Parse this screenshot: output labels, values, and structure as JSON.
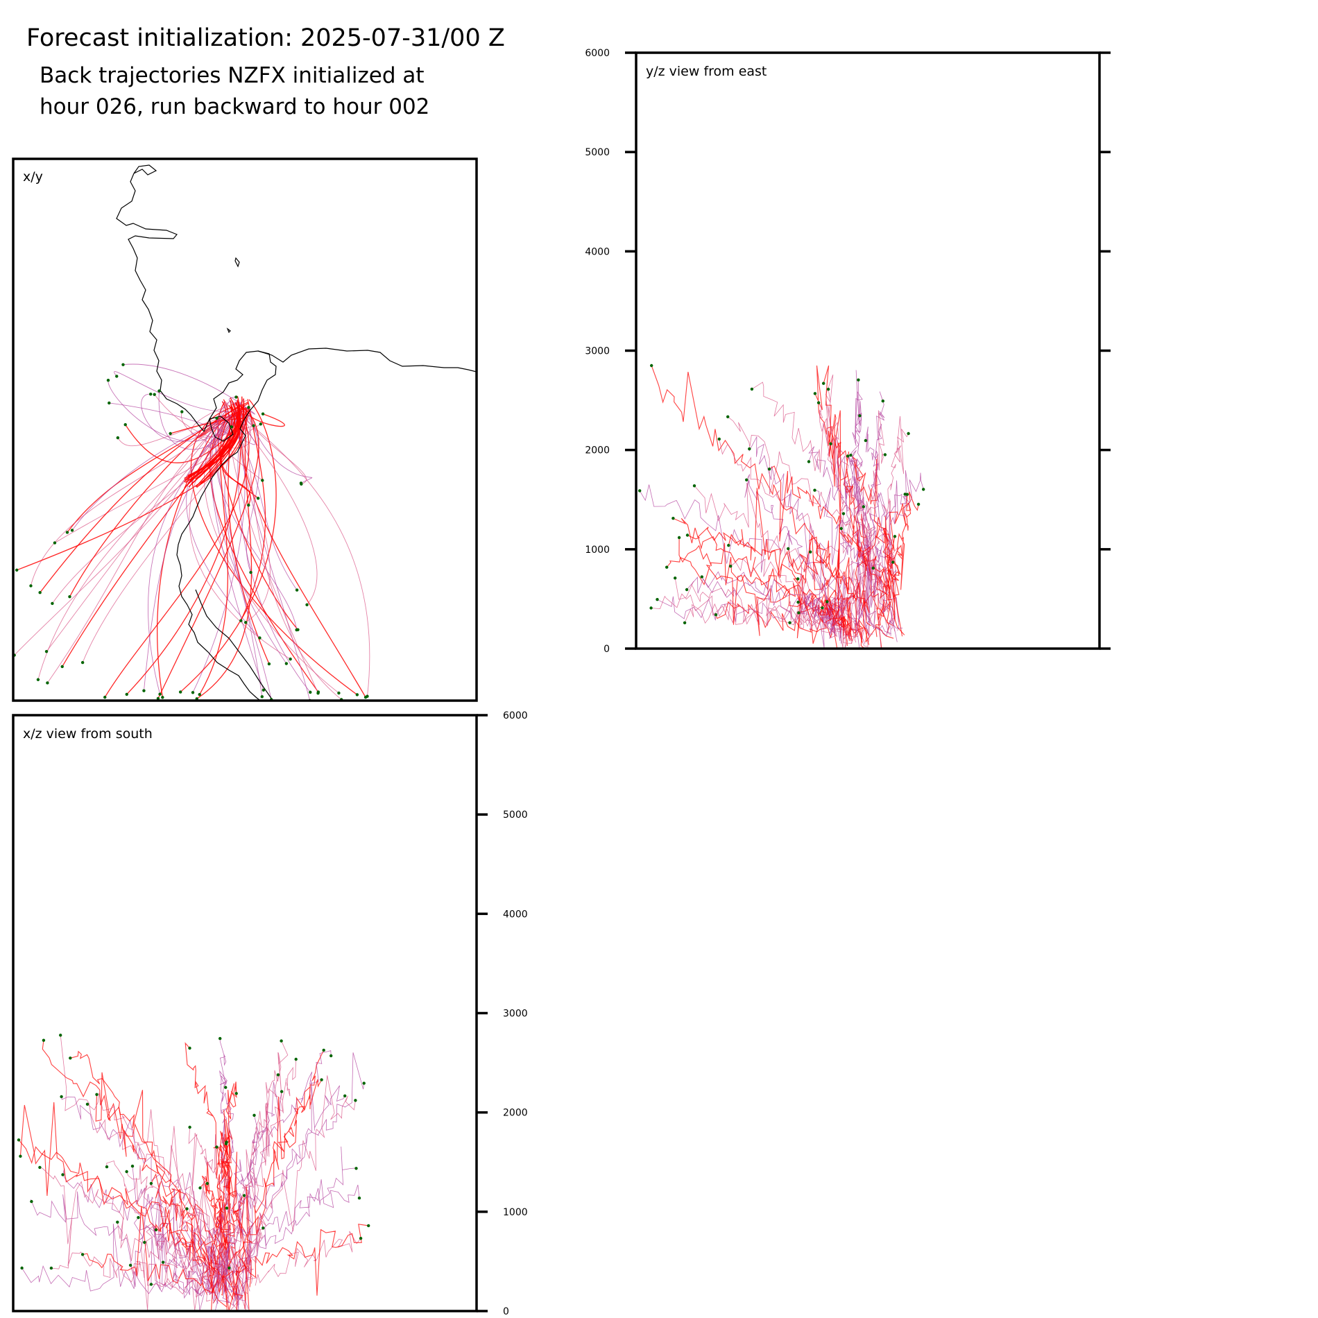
{
  "header": {
    "title": "Forecast initialization: 2025-07-31/00 Z",
    "subtitle_line1": "Back trajectories NZFX initialized at",
    "subtitle_line2": "hour 026, run backward to hour 002"
  },
  "colors": {
    "trajectory_primary": "#ff0000",
    "trajectory_secondary": "#b03a9a",
    "trajectory_tertiary": "#d84b80",
    "endpoint_marker": "#006400",
    "coastline": "#000000",
    "axes": "#000000"
  },
  "chart_data": [
    {
      "type": "line",
      "panel": "x/y",
      "label": "x/y",
      "description_of_content": "Map view of back-trajectory paths over a coastline; horizontal coordinates are not labelled.",
      "xlabel": "",
      "ylabel": "",
      "grid": false
    },
    {
      "type": "line",
      "panel": "y/z",
      "label": "y/z view from east",
      "xlabel": "",
      "ylabel": "",
      "ylim": [
        0,
        6000
      ],
      "yticks": [
        0,
        1000,
        2000,
        3000,
        4000,
        5000,
        6000
      ],
      "ytick_labels": [
        "0",
        "1000",
        "2000",
        "3000",
        "4000",
        "5000",
        "6000"
      ],
      "ytick_side": "left",
      "grid": false,
      "approx_altitude_range": [
        0,
        2750
      ]
    },
    {
      "type": "line",
      "panel": "x/z",
      "label": "x/z view from south",
      "xlabel": "",
      "ylabel": "",
      "ylim": [
        0,
        6000
      ],
      "yticks": [
        0,
        1000,
        2000,
        3000,
        4000,
        5000,
        6000
      ],
      "ytick_labels": [
        "0",
        "1000",
        "2000",
        "3000",
        "4000",
        "5000",
        "6000"
      ],
      "ytick_side": "right",
      "grid": false,
      "approx_altitude_range": [
        0,
        2800
      ]
    }
  ]
}
